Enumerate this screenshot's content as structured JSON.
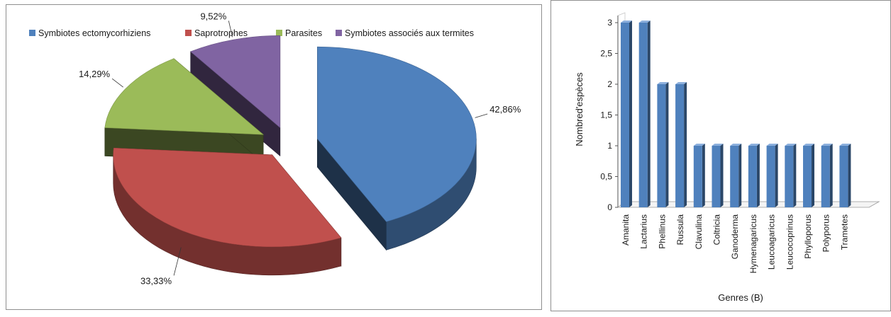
{
  "chart_data": [
    {
      "type": "pie",
      "title": "",
      "legend_position": "top",
      "legend": [
        "Symbiotes ectomycorhiziens",
        "Saprotrophes",
        "Parasites",
        "Symbiotes associés aux termites"
      ],
      "categories": [
        "Symbiotes ectomycorhiziens",
        "Saprotrophes",
        "Parasites",
        "Symbiotes associés aux termites"
      ],
      "values": [
        42.86,
        33.33,
        14.29,
        9.52
      ],
      "data_labels": [
        "42,86%",
        "33,33%",
        "14,29%",
        "9,52%"
      ],
      "colors": [
        "#4f81bd",
        "#c0504d",
        "#9bbb59",
        "#8064a2"
      ],
      "style": "3d-exploded"
    },
    {
      "type": "bar",
      "style": "3d-column",
      "xlabel": "Genres (B)",
      "ylabel": "Nombred'espèces",
      "categories": [
        "Amanita",
        "Lactarius",
        "Phellinus",
        "Russula",
        "Clavulina",
        "Coltricia",
        "Ganoderma",
        "Hymenagaricus",
        "Leucoagaricus",
        "Leucocoprinus",
        "Phylloporus",
        "Polyporus",
        "Trametes"
      ],
      "values": [
        3,
        3,
        2,
        2,
        1,
        1,
        1,
        1,
        1,
        1,
        1,
        1,
        1
      ],
      "ylim": [
        0,
        3
      ],
      "yticks": [
        "0",
        "0,5",
        "1",
        "1,5",
        "2",
        "2,5",
        "3"
      ],
      "color": "#4f81bd",
      "grid": false
    }
  ]
}
